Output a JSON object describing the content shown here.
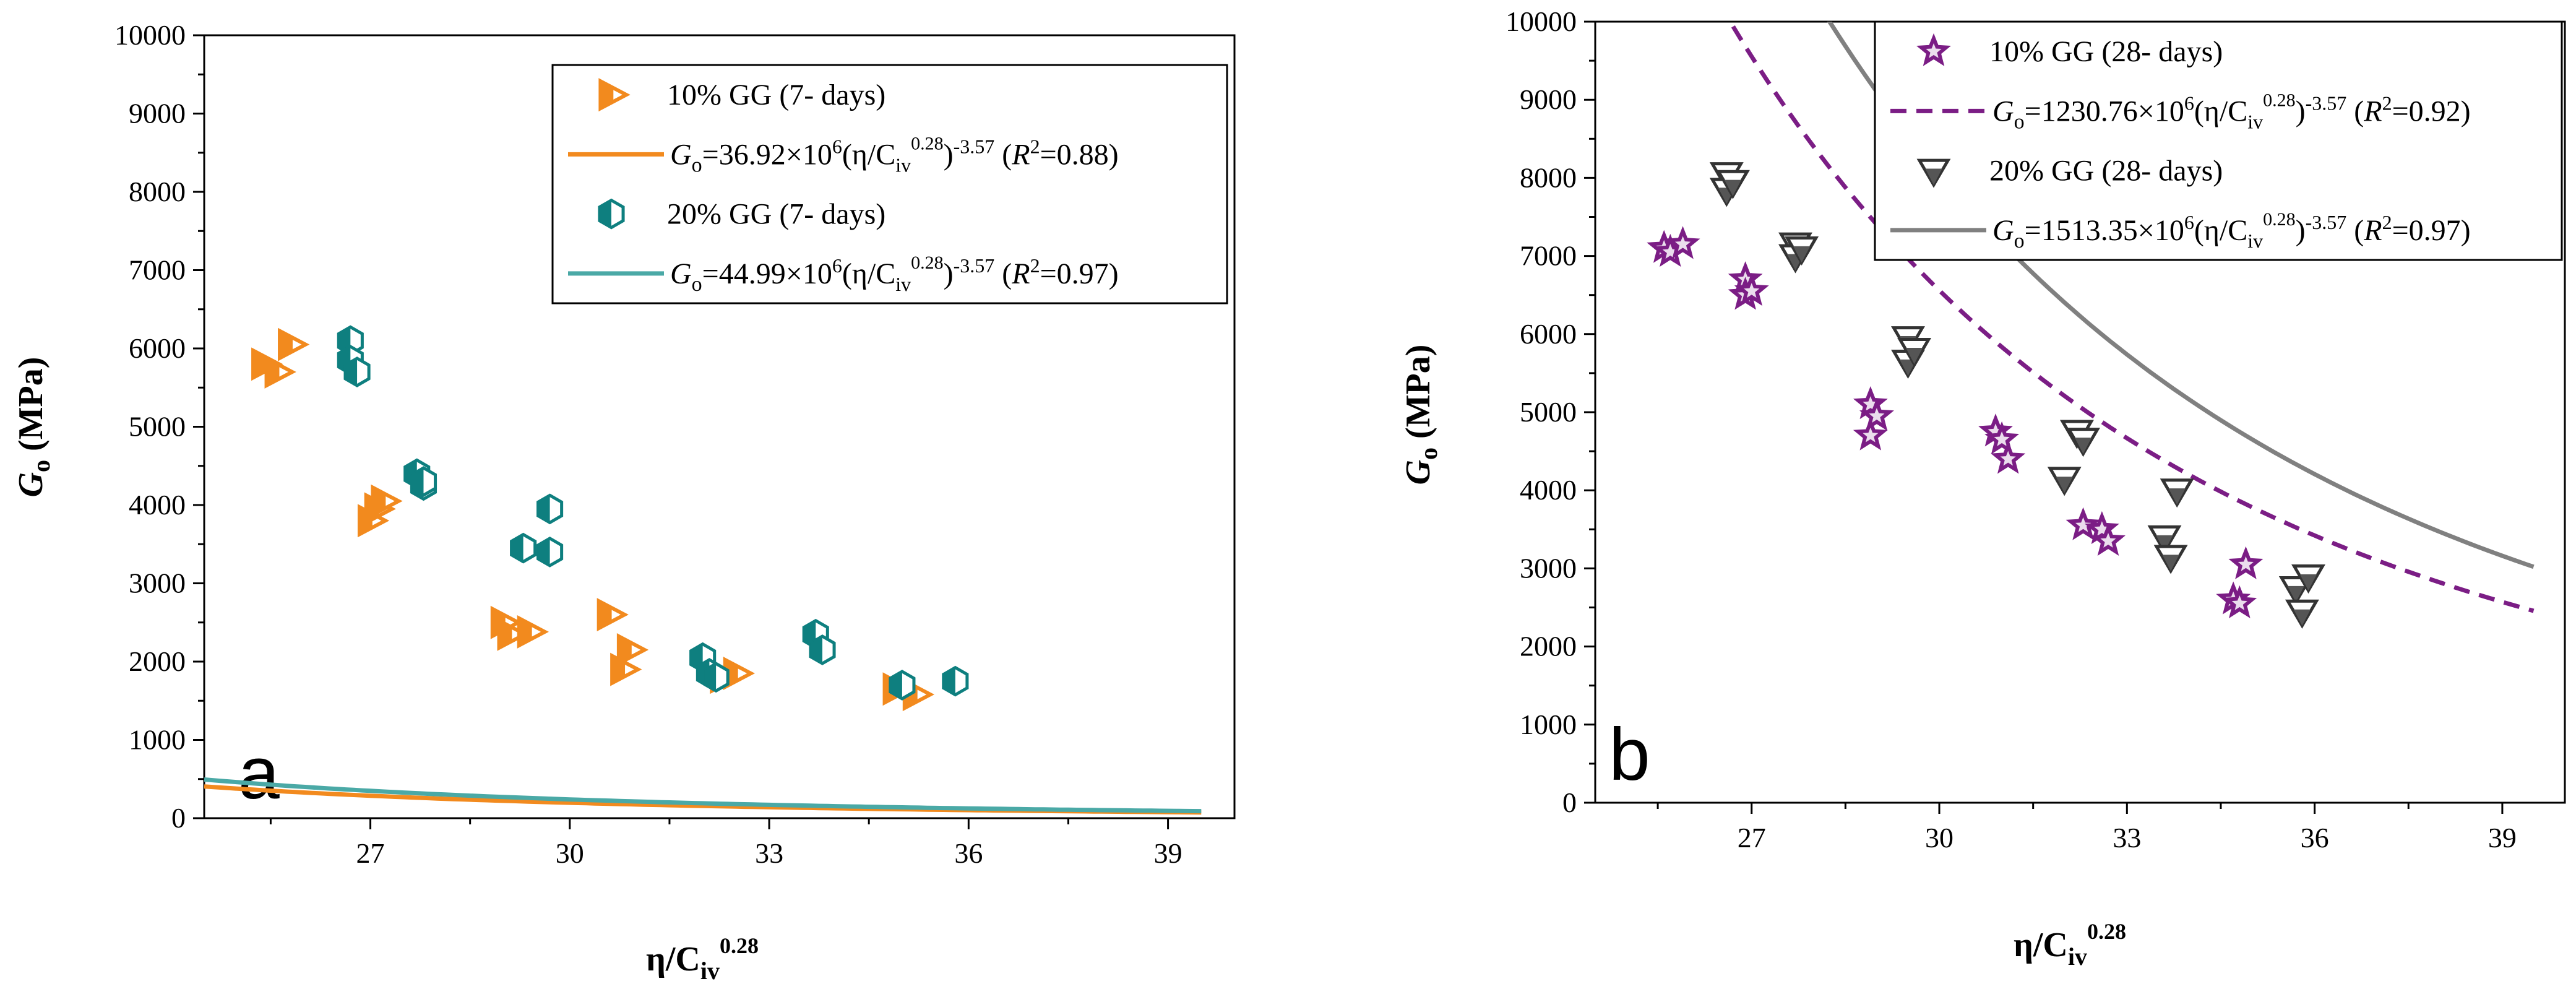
{
  "chart_data": [
    {
      "type": "scatter",
      "panel_label": "a",
      "xlabel": "η/C_iv^0.28",
      "ylabel": "G_o (MPa)",
      "xlim": [
        24.5,
        40
      ],
      "ylim": [
        0,
        10000
      ],
      "xticks": [
        27,
        30,
        33,
        36,
        39
      ],
      "yticks": [
        0,
        1000,
        2000,
        3000,
        4000,
        5000,
        6000,
        7000,
        8000,
        9000,
        10000
      ],
      "legend_position": "top-right",
      "series": [
        {
          "name": "10% GG (7- days)",
          "marker": "triangle-right",
          "color": "#f28a1e",
          "points": [
            [
              25.4,
              5800
            ],
            [
              25.6,
              5700
            ],
            [
              25.8,
              6050
            ],
            [
              27.0,
              3800
            ],
            [
              27.1,
              3950
            ],
            [
              27.2,
              4050
            ],
            [
              29.0,
              2500
            ],
            [
              29.1,
              2350
            ],
            [
              29.4,
              2380
            ],
            [
              30.6,
              2600
            ],
            [
              30.8,
              1900
            ],
            [
              30.9,
              2150
            ],
            [
              32.3,
              1800
            ],
            [
              32.5,
              1850
            ],
            [
              34.9,
              1650
            ],
            [
              35.2,
              1580
            ]
          ],
          "fit": {
            "label": "G_o=36.92×10^6(η/C_iv^0.28)^-3.57 (R^2=0.88)",
            "coef": 36920000,
            "exp": -3.57,
            "color": "#f28a1e",
            "dash": "solid",
            "x_range": [
              24.5,
              39.5
            ]
          }
        },
        {
          "name": "20% GG (7- days)",
          "marker": "hexagon-half",
          "color": "#0e7f7f",
          "points": [
            [
              26.7,
              6100
            ],
            [
              26.7,
              5850
            ],
            [
              26.8,
              5700
            ],
            [
              27.7,
              4400
            ],
            [
              27.8,
              4250
            ],
            [
              27.8,
              4300
            ],
            [
              29.3,
              3450
            ],
            [
              29.7,
              3950
            ],
            [
              29.7,
              3400
            ],
            [
              32.0,
              2050
            ],
            [
              32.1,
              1850
            ],
            [
              32.2,
              1800
            ],
            [
              33.7,
              2350
            ],
            [
              33.8,
              2150
            ],
            [
              35.0,
              1700
            ],
            [
              35.8,
              1750
            ]
          ],
          "fit": {
            "label": "G_o=44.99×10^6(η/C_iv^0.28)^-3.57 (R^2=0.97)",
            "coef": 44990000,
            "exp": -3.57,
            "color": "#4aa9a6",
            "dash": "solid",
            "x_range": [
              24.5,
              39.5
            ]
          }
        }
      ]
    },
    {
      "type": "scatter",
      "panel_label": "b",
      "xlabel": "η/C_iv^0.28",
      "ylabel": "G_o (MPa)",
      "xlim": [
        24.5,
        40
      ],
      "ylim": [
        0,
        10000
      ],
      "xticks": [
        27,
        30,
        33,
        36,
        39
      ],
      "yticks": [
        0,
        1000,
        2000,
        3000,
        4000,
        5000,
        6000,
        7000,
        8000,
        9000,
        10000
      ],
      "legend_position": "top-right",
      "series": [
        {
          "name": "10% GG (28- days)",
          "marker": "star",
          "color": "#7b1d85",
          "points": [
            [
              25.6,
              7100
            ],
            [
              25.7,
              7050
            ],
            [
              25.9,
              7150
            ],
            [
              26.9,
              6700
            ],
            [
              26.9,
              6500
            ],
            [
              27.0,
              6550
            ],
            [
              28.9,
              5100
            ],
            [
              28.9,
              4700
            ],
            [
              29.0,
              4950
            ],
            [
              30.9,
              4750
            ],
            [
              31.0,
              4650
            ],
            [
              31.1,
              4400
            ],
            [
              32.3,
              3550
            ],
            [
              32.6,
              3500
            ],
            [
              32.7,
              3350
            ],
            [
              34.7,
              2600
            ],
            [
              34.8,
              2550
            ],
            [
              34.9,
              3050
            ]
          ],
          "fit": {
            "label": "G_o=1230.76×10^6(η/C_iv^0.28)^-3.57 (R^2=0.92)",
            "coef": 1230760000,
            "exp": -3.57,
            "color": "#7b1d85",
            "dash": "dashed",
            "x_range": [
              24.5,
              39.5
            ]
          }
        },
        {
          "name": "20% GG (28- days)",
          "marker": "triangle-down",
          "color": "#555555",
          "points": [
            [
              26.6,
              8050
            ],
            [
              26.6,
              7850
            ],
            [
              26.7,
              7950
            ],
            [
              27.7,
              7150
            ],
            [
              27.7,
              7000
            ],
            [
              27.8,
              7100
            ],
            [
              29.5,
              5950
            ],
            [
              29.5,
              5650
            ],
            [
              29.6,
              5800
            ],
            [
              32.0,
              4150
            ],
            [
              32.2,
              4750
            ],
            [
              32.3,
              4650
            ],
            [
              33.6,
              3400
            ],
            [
              33.7,
              3150
            ],
            [
              33.8,
              4000
            ],
            [
              35.7,
              2750
            ],
            [
              35.8,
              2450
            ],
            [
              35.9,
              2900
            ]
          ],
          "fit": {
            "label": "G_o=1513.35×10^6(η/C_iv^0.28)^-3.57 (R^2=0.97)",
            "coef": 1513350000,
            "exp": -3.57,
            "color": "#808080",
            "dash": "solid",
            "x_range": [
              24.5,
              39.5
            ]
          }
        }
      ]
    }
  ]
}
